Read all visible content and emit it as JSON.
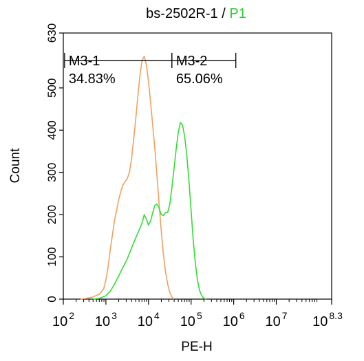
{
  "chart_data": {
    "type": "line",
    "title": "bs-2502R-1",
    "title_separator": " / ",
    "title_gate": "P1",
    "title_gate_color": "#2ecc2e",
    "xlabel": "PE-H",
    "ylabel": "Count",
    "x_scale": "log10",
    "xlim": [
      2,
      8.3
    ],
    "ylim": [
      0,
      630
    ],
    "x_ticks": [
      {
        "value": 2,
        "base": "10",
        "exp": "2"
      },
      {
        "value": 3,
        "base": "10",
        "exp": "3"
      },
      {
        "value": 4,
        "base": "10",
        "exp": "4"
      },
      {
        "value": 5,
        "base": "10",
        "exp": "5"
      },
      {
        "value": 6,
        "base": "10",
        "exp": "6"
      },
      {
        "value": 7,
        "base": "10",
        "exp": "7"
      },
      {
        "value": 8.3,
        "base": "10",
        "exp": "8.3"
      }
    ],
    "y_ticks": [
      0,
      100,
      200,
      300,
      400,
      500,
      630
    ],
    "grid": false,
    "series": [
      {
        "color": "#f0a060",
        "points": [
          [
            2.4,
            0
          ],
          [
            2.55,
            2
          ],
          [
            2.7,
            5
          ],
          [
            2.85,
            12
          ],
          [
            2.95,
            25
          ],
          [
            3.0,
            45
          ],
          [
            3.05,
            75
          ],
          [
            3.1,
            115
          ],
          [
            3.15,
            150
          ],
          [
            3.2,
            185
          ],
          [
            3.25,
            210
          ],
          [
            3.3,
            235
          ],
          [
            3.35,
            255
          ],
          [
            3.4,
            270
          ],
          [
            3.45,
            278
          ],
          [
            3.5,
            285
          ],
          [
            3.55,
            300
          ],
          [
            3.6,
            330
          ],
          [
            3.65,
            375
          ],
          [
            3.7,
            425
          ],
          [
            3.75,
            480
          ],
          [
            3.8,
            530
          ],
          [
            3.85,
            565
          ],
          [
            3.9,
            575
          ],
          [
            3.95,
            555
          ],
          [
            4.0,
            515
          ],
          [
            4.05,
            465
          ],
          [
            4.1,
            410
          ],
          [
            4.15,
            355
          ],
          [
            4.2,
            290
          ],
          [
            4.25,
            225
          ],
          [
            4.3,
            160
          ],
          [
            4.35,
            105
          ],
          [
            4.4,
            65
          ],
          [
            4.45,
            35
          ],
          [
            4.5,
            15
          ],
          [
            4.55,
            5
          ],
          [
            4.6,
            0
          ]
        ]
      },
      {
        "color": "#33dd33",
        "points": [
          [
            2.7,
            0
          ],
          [
            2.85,
            2
          ],
          [
            3.0,
            8
          ],
          [
            3.1,
            18
          ],
          [
            3.2,
            35
          ],
          [
            3.3,
            55
          ],
          [
            3.4,
            75
          ],
          [
            3.5,
            95
          ],
          [
            3.6,
            120
          ],
          [
            3.7,
            145
          ],
          [
            3.8,
            168
          ],
          [
            3.85,
            180
          ],
          [
            3.9,
            200
          ],
          [
            3.95,
            190
          ],
          [
            4.0,
            175
          ],
          [
            4.05,
            185
          ],
          [
            4.1,
            205
          ],
          [
            4.15,
            222
          ],
          [
            4.2,
            225
          ],
          [
            4.25,
            215
          ],
          [
            4.3,
            200
          ],
          [
            4.35,
            198
          ],
          [
            4.4,
            205
          ],
          [
            4.45,
            205
          ],
          [
            4.5,
            225
          ],
          [
            4.55,
            265
          ],
          [
            4.6,
            310
          ],
          [
            4.65,
            355
          ],
          [
            4.7,
            395
          ],
          [
            4.75,
            418
          ],
          [
            4.8,
            412
          ],
          [
            4.85,
            385
          ],
          [
            4.9,
            340
          ],
          [
            4.95,
            280
          ],
          [
            5.0,
            210
          ],
          [
            5.05,
            140
          ],
          [
            5.1,
            85
          ],
          [
            5.15,
            45
          ],
          [
            5.2,
            20
          ],
          [
            5.25,
            8
          ],
          [
            5.3,
            2
          ],
          [
            5.35,
            0
          ]
        ]
      }
    ],
    "markers": [
      {
        "name": "M3-1",
        "percent": "34.83%",
        "x_start": 2.03,
        "x_end": 4.55,
        "y": 565
      },
      {
        "name": "M3-2",
        "percent": "65.06%",
        "x_start": 4.55,
        "x_end": 6.05,
        "y": 565
      }
    ]
  }
}
